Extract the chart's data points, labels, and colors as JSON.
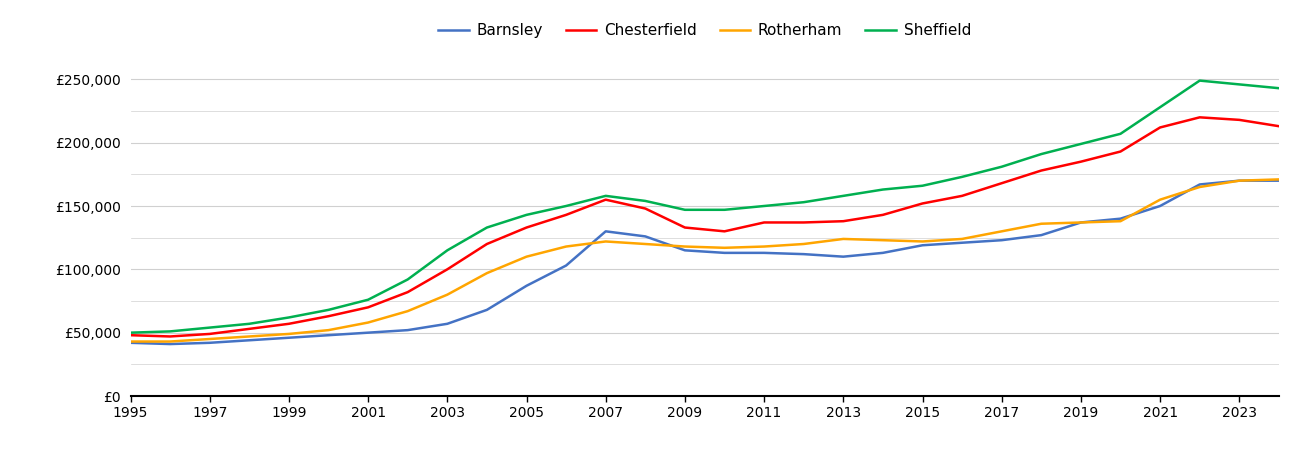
{
  "legend_labels": [
    "Barnsley",
    "Chesterfield",
    "Rotherham",
    "Sheffield"
  ],
  "colors": {
    "Barnsley": "#4472C4",
    "Chesterfield": "#FF0000",
    "Rotherham": "#FFA500",
    "Sheffield": "#00B050"
  },
  "years": [
    1995,
    1996,
    1997,
    1998,
    1999,
    2000,
    2001,
    2002,
    2003,
    2004,
    2005,
    2006,
    2007,
    2008,
    2009,
    2010,
    2011,
    2012,
    2013,
    2014,
    2015,
    2016,
    2017,
    2018,
    2019,
    2020,
    2021,
    2022,
    2023,
    2024
  ],
  "Barnsley": [
    42000,
    41000,
    42000,
    44000,
    46000,
    48000,
    50000,
    52000,
    57000,
    68000,
    87000,
    103000,
    130000,
    126000,
    115000,
    113000,
    113000,
    112000,
    110000,
    113000,
    119000,
    121000,
    123000,
    127000,
    137000,
    140000,
    150000,
    167000,
    170000,
    170000
  ],
  "Chesterfield": [
    48000,
    47000,
    49000,
    53000,
    57000,
    63000,
    70000,
    82000,
    100000,
    120000,
    133000,
    143000,
    155000,
    148000,
    133000,
    130000,
    137000,
    137000,
    138000,
    143000,
    152000,
    158000,
    168000,
    178000,
    185000,
    193000,
    212000,
    220000,
    218000,
    213000
  ],
  "Rotherham": [
    43000,
    43000,
    45000,
    47000,
    49000,
    52000,
    58000,
    67000,
    80000,
    97000,
    110000,
    118000,
    122000,
    120000,
    118000,
    117000,
    118000,
    120000,
    124000,
    123000,
    122000,
    124000,
    130000,
    136000,
    137000,
    138000,
    155000,
    165000,
    170000,
    171000
  ],
  "Sheffield": [
    50000,
    51000,
    54000,
    57000,
    62000,
    68000,
    76000,
    92000,
    115000,
    133000,
    143000,
    150000,
    158000,
    154000,
    147000,
    147000,
    150000,
    153000,
    158000,
    163000,
    166000,
    173000,
    181000,
    191000,
    199000,
    207000,
    228000,
    249000,
    246000,
    243000
  ],
  "ylim": [
    0,
    270000
  ],
  "yticks": [
    0,
    50000,
    100000,
    150000,
    200000,
    250000
  ],
  "ytick_labels": [
    "£0",
    "£50,000",
    "£100,000",
    "£150,000",
    "£200,000",
    "£250,000"
  ],
  "minor_yticks": [
    25000,
    75000,
    125000,
    175000,
    225000
  ],
  "xtick_years": [
    1995,
    1997,
    1999,
    2001,
    2003,
    2005,
    2007,
    2009,
    2011,
    2013,
    2015,
    2017,
    2019,
    2021,
    2023
  ],
  "background_color": "#ffffff",
  "grid_color": "#d0d0d0",
  "line_width": 1.8
}
